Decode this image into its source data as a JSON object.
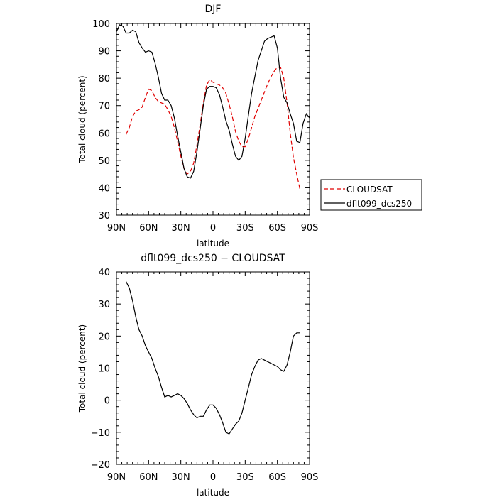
{
  "chart_data": [
    {
      "type": "line",
      "title": "DJF",
      "xlabel": "latitude",
      "ylabel": "Total cloud (percent)",
      "xlim": [
        90,
        -90
      ],
      "ylim": [
        30,
        100
      ],
      "x_ticks": [
        90,
        60,
        30,
        0,
        -30,
        -60,
        -90
      ],
      "x_tick_labels": [
        "90N",
        "60N",
        "30N",
        "0",
        "30S",
        "60S",
        "90S"
      ],
      "y_ticks": [
        30,
        40,
        50,
        60,
        70,
        80,
        90,
        100
      ],
      "y_tick_labels": [
        "30",
        "40",
        "50",
        "60",
        "70",
        "80",
        "90",
        "100"
      ],
      "legend": {
        "position": "right"
      },
      "series": [
        {
          "name": "CLOUDSAT",
          "color": "#e00000",
          "dash": true,
          "x": [
            81,
            78,
            75,
            72,
            69,
            66,
            63,
            60,
            57,
            54,
            51,
            48,
            45,
            42,
            39,
            36,
            33,
            30,
            27,
            24,
            21,
            18,
            15,
            12,
            9,
            6,
            3,
            0,
            -3,
            -6,
            -9,
            -12,
            -15,
            -18,
            -21,
            -24,
            -27,
            -30,
            -33,
            -36,
            -39,
            -42,
            -45,
            -48,
            -51,
            -54,
            -57,
            -60,
            -63,
            -66,
            -69,
            -72,
            -75,
            -78,
            -81
          ],
          "y": [
            59.5,
            62,
            66,
            68,
            68.5,
            69.5,
            73,
            76,
            75.5,
            73,
            71.5,
            71,
            70.5,
            68.5,
            66,
            62,
            57,
            51.5,
            47,
            45,
            46,
            49,
            55.5,
            63,
            71,
            77.5,
            79.5,
            78.5,
            78,
            77.5,
            76.5,
            74.5,
            70.5,
            66,
            60.5,
            57,
            55,
            55,
            58,
            62,
            66,
            69,
            72,
            75,
            78,
            80.5,
            82.5,
            84,
            84,
            80,
            71,
            60,
            51,
            45,
            39.5
          ]
        },
        {
          "name": "dflt099_dcs250",
          "color": "#000000",
          "dash": false,
          "x": [
            90,
            87,
            84,
            81,
            78,
            75,
            72,
            69,
            66,
            63,
            60,
            57,
            54,
            51,
            48,
            45,
            42,
            39,
            36,
            33,
            30,
            27,
            24,
            21,
            18,
            15,
            12,
            9,
            6,
            3,
            0,
            -3,
            -6,
            -9,
            -12,
            -15,
            -18,
            -21,
            -24,
            -27,
            -30,
            -33,
            -36,
            -39,
            -42,
            -45,
            -48,
            -51,
            -54,
            -57,
            -60,
            -63,
            -66,
            -69,
            -72,
            -75,
            -78,
            -81,
            -84,
            -87,
            -90
          ],
          "y": [
            97,
            99.5,
            99,
            96.5,
            96.5,
            97.5,
            97,
            93,
            91,
            89.5,
            90,
            89.5,
            85.5,
            80.5,
            74.5,
            72,
            72,
            70,
            65.5,
            59,
            53,
            47,
            44,
            43.5,
            46,
            53,
            61.5,
            70,
            76,
            77,
            77,
            76.5,
            74,
            69.5,
            64.5,
            61,
            56,
            51.5,
            50,
            51.5,
            58,
            66.5,
            74.5,
            80.5,
            86.5,
            90,
            93.5,
            94.5,
            95,
            95.5,
            91,
            80,
            73,
            71,
            67,
            63.5,
            57,
            56.5,
            63.5,
            67,
            65.5
          ]
        }
      ]
    },
    {
      "type": "line",
      "title": "dflt099_dcs250 − CLOUDSAT",
      "xlabel": "latitude",
      "ylabel": "Total cloud (percent)",
      "xlim": [
        90,
        -90
      ],
      "ylim": [
        -20,
        40
      ],
      "x_ticks": [
        90,
        60,
        30,
        0,
        -30,
        -60,
        -90
      ],
      "x_tick_labels": [
        "90N",
        "60N",
        "30N",
        "0",
        "30S",
        "60S",
        "90S"
      ],
      "y_ticks": [
        -20,
        -10,
        0,
        10,
        20,
        30,
        40
      ],
      "y_tick_labels": [
        "−20",
        "−10",
        "0",
        "10",
        "20",
        "30",
        "40"
      ],
      "series": [
        {
          "color": "#000000",
          "dash": false,
          "x": [
            81,
            78,
            75,
            72,
            69,
            66,
            63,
            60,
            57,
            54,
            51,
            48,
            45,
            42,
            39,
            36,
            33,
            30,
            27,
            24,
            21,
            18,
            15,
            12,
            9,
            6,
            3,
            0,
            -3,
            -6,
            -9,
            -12,
            -15,
            -18,
            -21,
            -24,
            -27,
            -30,
            -33,
            -36,
            -39,
            -42,
            -45,
            -48,
            -51,
            -54,
            -57,
            -60,
            -63,
            -66,
            -69,
            -72,
            -75,
            -78,
            -81
          ],
          "y": [
            37,
            35,
            31,
            26,
            22,
            20,
            17,
            15,
            13,
            10,
            7.5,
            4,
            1,
            1.5,
            1,
            1.5,
            2,
            1.5,
            0.5,
            -1,
            -3,
            -4.5,
            -5.5,
            -5,
            -5,
            -3,
            -1.5,
            -1.5,
            -2.5,
            -4.5,
            -7,
            -10,
            -10.5,
            -9,
            -7.5,
            -6.5,
            -4,
            0,
            4,
            8,
            10.5,
            12.5,
            13,
            12.5,
            12,
            11.5,
            11,
            10.5,
            9.5,
            9,
            11,
            15,
            20,
            21,
            21
          ]
        }
      ]
    }
  ]
}
